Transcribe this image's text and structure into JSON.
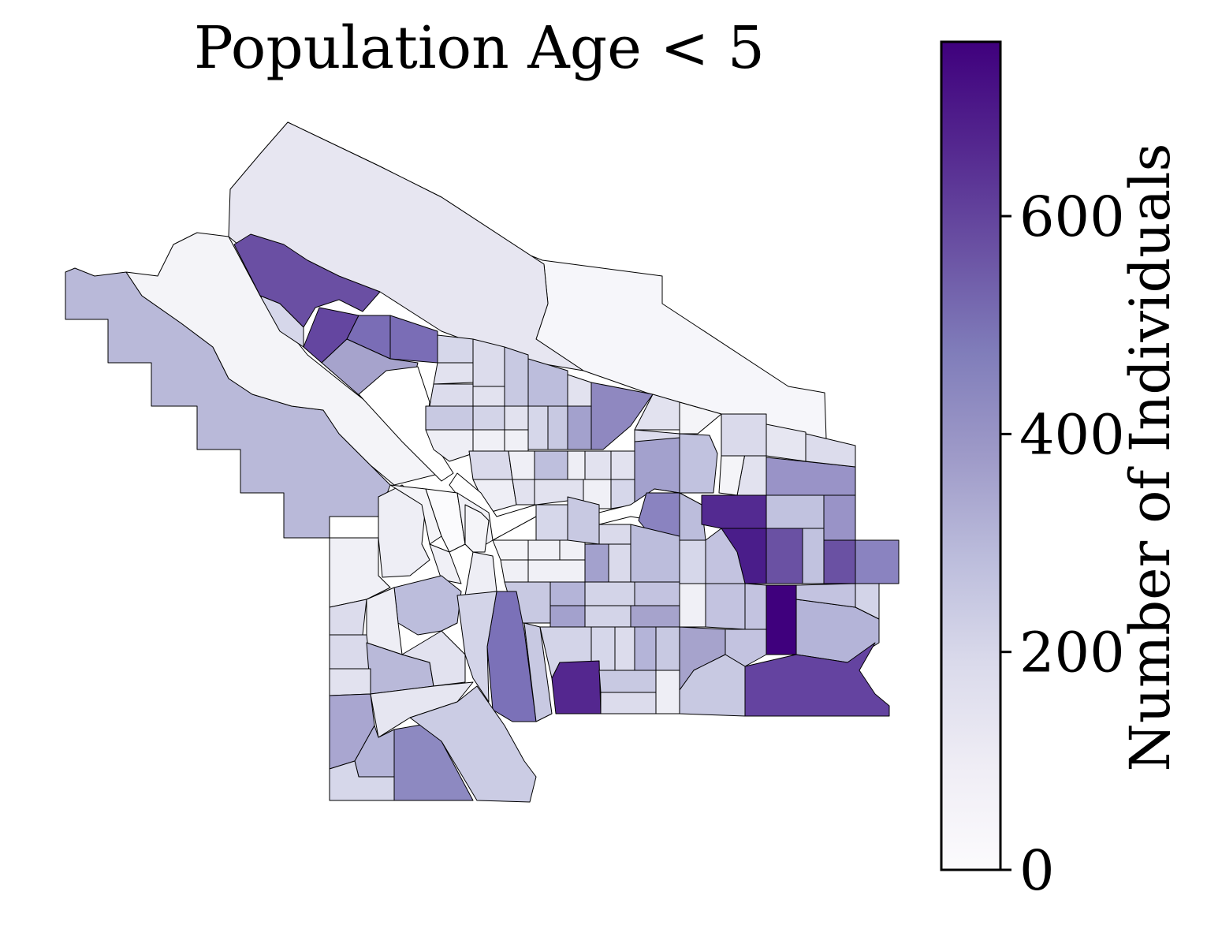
{
  "title": "Population Age < 5",
  "colorbar": {
    "label": "Number of Individuals",
    "min": 0,
    "max": 760,
    "ticks": [
      {
        "value": 0,
        "label": "0"
      },
      {
        "value": 200,
        "label": "200"
      },
      {
        "value": 400,
        "label": "400"
      },
      {
        "value": 600,
        "label": "600"
      }
    ],
    "colormap": "Purples",
    "stops": [
      "#fcfbfd",
      "#efedf5",
      "#dadaeb",
      "#bcbddc",
      "#9e9ac8",
      "#807dba",
      "#6a51a3",
      "#54278f",
      "#3f007d"
    ]
  }
}
